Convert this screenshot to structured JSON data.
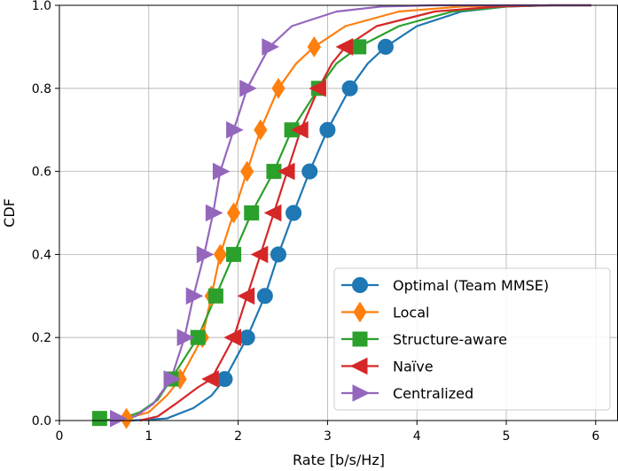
{
  "chart_data": {
    "type": "line",
    "title": "",
    "xlabel": "Rate [b/s/Hz]",
    "ylabel": "CDF",
    "xlim": [
      0,
      6.25
    ],
    "ylim": [
      0,
      1.0
    ],
    "xticks": [
      "0",
      "1",
      "2",
      "3",
      "4",
      "5",
      "6"
    ],
    "yticks": [
      "0.0",
      "0.2",
      "0.4",
      "0.6",
      "0.8",
      "1.0"
    ],
    "grid": true,
    "legend_position": "lower-right",
    "series": [
      {
        "name": "Optimal (Team MMSE)",
        "color": "#1f77b4",
        "marker": "circle",
        "curve": [
          [
            0.8,
            0
          ],
          [
            1.2,
            0.005
          ],
          [
            1.5,
            0.03
          ],
          [
            1.7,
            0.06
          ],
          [
            1.85,
            0.1
          ],
          [
            2.1,
            0.2
          ],
          [
            2.3,
            0.3
          ],
          [
            2.45,
            0.4
          ],
          [
            2.62,
            0.5
          ],
          [
            2.8,
            0.6
          ],
          [
            3.0,
            0.7
          ],
          [
            3.25,
            0.8
          ],
          [
            3.45,
            0.86
          ],
          [
            3.65,
            0.9
          ],
          [
            4.0,
            0.95
          ],
          [
            4.5,
            0.985
          ],
          [
            5.0,
            0.997
          ],
          [
            5.5,
            1.0
          ],
          [
            5.95,
            1.0
          ]
        ],
        "markers": [
          [
            1.85,
            0.1
          ],
          [
            2.1,
            0.2
          ],
          [
            2.3,
            0.3
          ],
          [
            2.45,
            0.4
          ],
          [
            2.62,
            0.5
          ],
          [
            2.8,
            0.6
          ],
          [
            3.0,
            0.7
          ],
          [
            3.25,
            0.8
          ],
          [
            3.65,
            0.9
          ]
        ]
      },
      {
        "name": "Local",
        "color": "#ff7f0e",
        "marker": "diamond",
        "curve": [
          [
            0.6,
            0
          ],
          [
            0.75,
            0.005
          ],
          [
            1.0,
            0.02
          ],
          [
            1.2,
            0.06
          ],
          [
            1.35,
            0.1
          ],
          [
            1.6,
            0.2
          ],
          [
            1.7,
            0.3
          ],
          [
            1.8,
            0.4
          ],
          [
            1.95,
            0.5
          ],
          [
            2.1,
            0.6
          ],
          [
            2.25,
            0.7
          ],
          [
            2.45,
            0.8
          ],
          [
            2.65,
            0.86
          ],
          [
            2.85,
            0.9
          ],
          [
            3.2,
            0.95
          ],
          [
            3.8,
            0.985
          ],
          [
            4.5,
            0.997
          ],
          [
            5.0,
            1.0
          ],
          [
            5.95,
            1.0
          ]
        ],
        "markers": [
          [
            0.75,
            0.005
          ],
          [
            1.35,
            0.1
          ],
          [
            1.6,
            0.2
          ],
          [
            1.7,
            0.3
          ],
          [
            1.8,
            0.4
          ],
          [
            1.95,
            0.5
          ],
          [
            2.1,
            0.6
          ],
          [
            2.25,
            0.7
          ],
          [
            2.45,
            0.8
          ],
          [
            2.85,
            0.9
          ]
        ]
      },
      {
        "name": "Structure-aware",
        "color": "#2ca02c",
        "marker": "square",
        "curve": [
          [
            0.45,
            0
          ],
          [
            0.7,
            0.005
          ],
          [
            0.9,
            0.02
          ],
          [
            1.1,
            0.05
          ],
          [
            1.25,
            0.1
          ],
          [
            1.55,
            0.2
          ],
          [
            1.75,
            0.3
          ],
          [
            1.95,
            0.4
          ],
          [
            2.15,
            0.5
          ],
          [
            2.4,
            0.6
          ],
          [
            2.6,
            0.7
          ],
          [
            2.9,
            0.8
          ],
          [
            3.1,
            0.86
          ],
          [
            3.35,
            0.9
          ],
          [
            3.8,
            0.95
          ],
          [
            4.4,
            0.985
          ],
          [
            5.0,
            0.997
          ],
          [
            5.5,
            1.0
          ],
          [
            5.95,
            1.0
          ]
        ],
        "markers": [
          [
            0.45,
            0.005
          ],
          [
            1.25,
            0.1
          ],
          [
            1.55,
            0.2
          ],
          [
            1.75,
            0.3
          ],
          [
            1.95,
            0.4
          ],
          [
            2.15,
            0.5
          ],
          [
            2.4,
            0.6
          ],
          [
            2.6,
            0.7
          ],
          [
            2.9,
            0.8
          ],
          [
            3.35,
            0.9
          ]
        ]
      },
      {
        "name": "Naïve",
        "color": "#d62728",
        "marker": "triangle-left",
        "curve": [
          [
            0.9,
            0
          ],
          [
            1.1,
            0.01
          ],
          [
            1.3,
            0.04
          ],
          [
            1.55,
            0.08
          ],
          [
            1.7,
            0.1
          ],
          [
            1.95,
            0.2
          ],
          [
            2.1,
            0.3
          ],
          [
            2.25,
            0.4
          ],
          [
            2.4,
            0.5
          ],
          [
            2.55,
            0.6
          ],
          [
            2.7,
            0.7
          ],
          [
            2.9,
            0.8
          ],
          [
            3.05,
            0.86
          ],
          [
            3.2,
            0.9
          ],
          [
            3.55,
            0.95
          ],
          [
            4.2,
            0.985
          ],
          [
            4.9,
            0.997
          ],
          [
            5.5,
            1.0
          ],
          [
            5.95,
            1.0
          ]
        ],
        "markers": [
          [
            1.7,
            0.1
          ],
          [
            1.95,
            0.2
          ],
          [
            2.1,
            0.3
          ],
          [
            2.25,
            0.4
          ],
          [
            2.4,
            0.5
          ],
          [
            2.55,
            0.6
          ],
          [
            2.7,
            0.7
          ],
          [
            2.9,
            0.8
          ],
          [
            3.2,
            0.9
          ]
        ]
      },
      {
        "name": "Centralized",
        "color": "#9467bd",
        "marker": "triangle-right",
        "curve": [
          [
            0.6,
            0
          ],
          [
            0.85,
            0.01
          ],
          [
            1.05,
            0.04
          ],
          [
            1.15,
            0.07
          ],
          [
            1.25,
            0.1
          ],
          [
            1.4,
            0.2
          ],
          [
            1.5,
            0.3
          ],
          [
            1.62,
            0.4
          ],
          [
            1.72,
            0.5
          ],
          [
            1.8,
            0.6
          ],
          [
            1.95,
            0.7
          ],
          [
            2.1,
            0.8
          ],
          [
            2.25,
            0.86
          ],
          [
            2.35,
            0.9
          ],
          [
            2.6,
            0.95
          ],
          [
            3.1,
            0.985
          ],
          [
            3.6,
            0.997
          ],
          [
            4.2,
            1.0
          ],
          [
            5.95,
            1.0
          ]
        ],
        "markers": [
          [
            0.65,
            0.005
          ],
          [
            1.25,
            0.1
          ],
          [
            1.4,
            0.2
          ],
          [
            1.5,
            0.3
          ],
          [
            1.62,
            0.4
          ],
          [
            1.72,
            0.5
          ],
          [
            1.8,
            0.6
          ],
          [
            1.95,
            0.7
          ],
          [
            2.1,
            0.8
          ],
          [
            2.35,
            0.9
          ]
        ]
      }
    ]
  }
}
